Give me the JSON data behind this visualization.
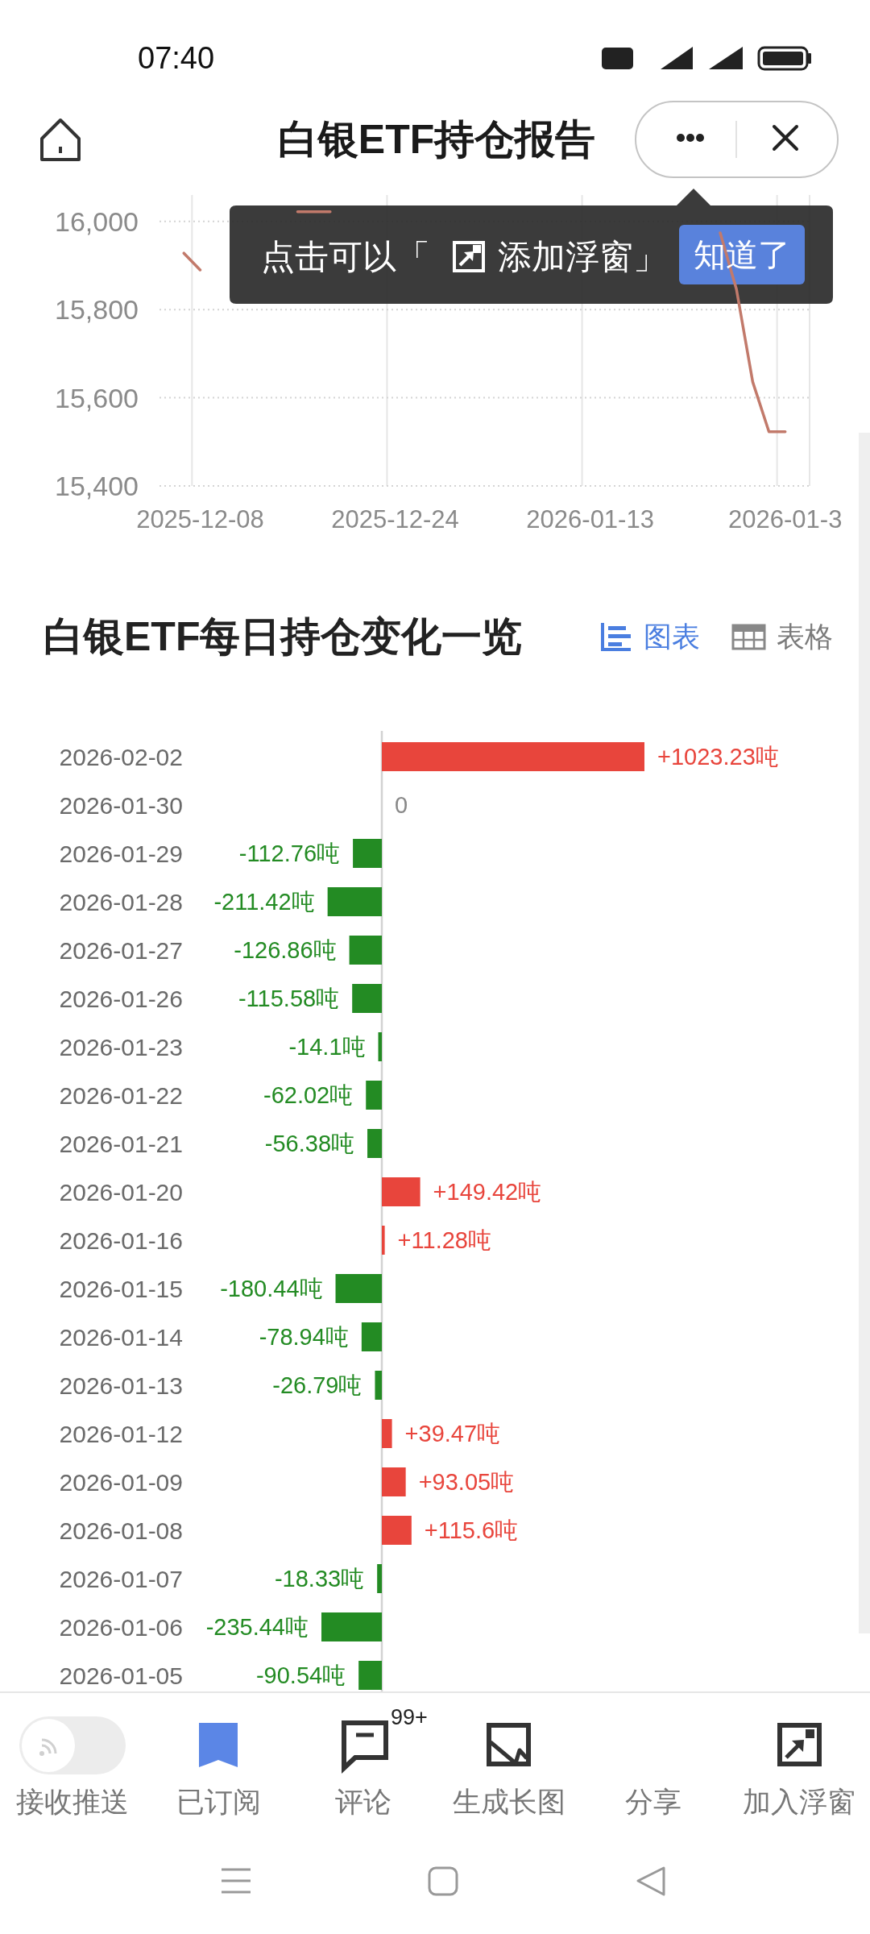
{
  "chart_data": [
    {
      "type": "line",
      "title": "白银ETF持仓报告",
      "categories": [
        null,
        null,
        "2025-12-08",
        null,
        null,
        null,
        null,
        null,
        null,
        null,
        null,
        null,
        null,
        null,
        "2025-12-24",
        null,
        null,
        null,
        null,
        null,
        null,
        null,
        null,
        null,
        null,
        null,
        "2026-01-13",
        null,
        null,
        null,
        null,
        null,
        null,
        null,
        null,
        null,
        null,
        null,
        "2026-01-3",
        null
      ],
      "series": [
        {
          "color": "#c27a6b",
          "values": [
            null,
            15928,
            15890,
            null,
            null,
            null,
            null,
            null,
            16022,
            16022,
            16022,
            null,
            null,
            null,
            null,
            null,
            null,
            null,
            null,
            null,
            null,
            null,
            null,
            null,
            null,
            null,
            null,
            null,
            null,
            null,
            null,
            null,
            null,
            null,
            15974,
            15846,
            15636,
            15523,
            15523,
            null
          ]
        }
      ],
      "ylim": [
        15400,
        16060
      ],
      "yticks": [
        {
          "value": 15400,
          "label": "15,400"
        },
        {
          "value": 15600,
          "label": "15,600"
        },
        {
          "value": 15800,
          "label": "15,800"
        },
        {
          "value": 16000,
          "label": "16,000"
        }
      ],
      "grid": true,
      "annotations": [
        "07:40",
        "点击可以「",
        "添加浮窗」",
        "知道了"
      ]
    },
    {
      "type": "bar",
      "orientation": "horizontal",
      "title": "白银ETF每日持仓变化一览",
      "categories": [
        "2026-02-02",
        "2026-01-30",
        "2026-01-29",
        "2026-01-28",
        "2026-01-27",
        "2026-01-26",
        "2026-01-23",
        "2026-01-22",
        "2026-01-21",
        "2026-01-20",
        "2026-01-16",
        "2026-01-15",
        "2026-01-14",
        "2026-01-13",
        "2026-01-12",
        "2026-01-09",
        "2026-01-08",
        "2026-01-07",
        "2026-01-06",
        "2026-01-05"
      ],
      "values": [
        1023.23,
        0,
        -112.76,
        -211.42,
        -126.86,
        -115.58,
        -14.1,
        -62.02,
        -56.38,
        149.42,
        11.28,
        -180.44,
        -78.94,
        -26.79,
        39.47,
        93.05,
        115.6,
        -18.33,
        -235.44,
        -90.54
      ],
      "colors": [
        "#e8453c",
        "#888888",
        "#238b23",
        "#238b23",
        "#238b23",
        "#238b23",
        "#238b23",
        "#238b23",
        "#238b23",
        "#e8453c",
        "#e8453c",
        "#238b23",
        "#238b23",
        "#238b23",
        "#e8453c",
        "#e8453c",
        "#e8453c",
        "#238b23",
        "#238b23",
        "#238b23"
      ],
      "value_labels": [
        "+1023.23吨",
        "0",
        "-112.76吨",
        "-211.42吨",
        "-126.86吨",
        "-115.58吨",
        "-14.1吨",
        "-62.02吨",
        "-56.38吨",
        "+149.42吨",
        "+11.28吨",
        "-180.44吨",
        "-78.94吨",
        "-26.79吨",
        "+39.47吨",
        "+93.05吨",
        "+115.6吨",
        "-18.33吨",
        "-235.44吨",
        "-90.54吨"
      ],
      "annotations": [
        "图表",
        "表格",
        "接收推送",
        "已订阅",
        "评论",
        "99+",
        "生成长图",
        "分享",
        "加入浮窗"
      ]
    }
  ]
}
